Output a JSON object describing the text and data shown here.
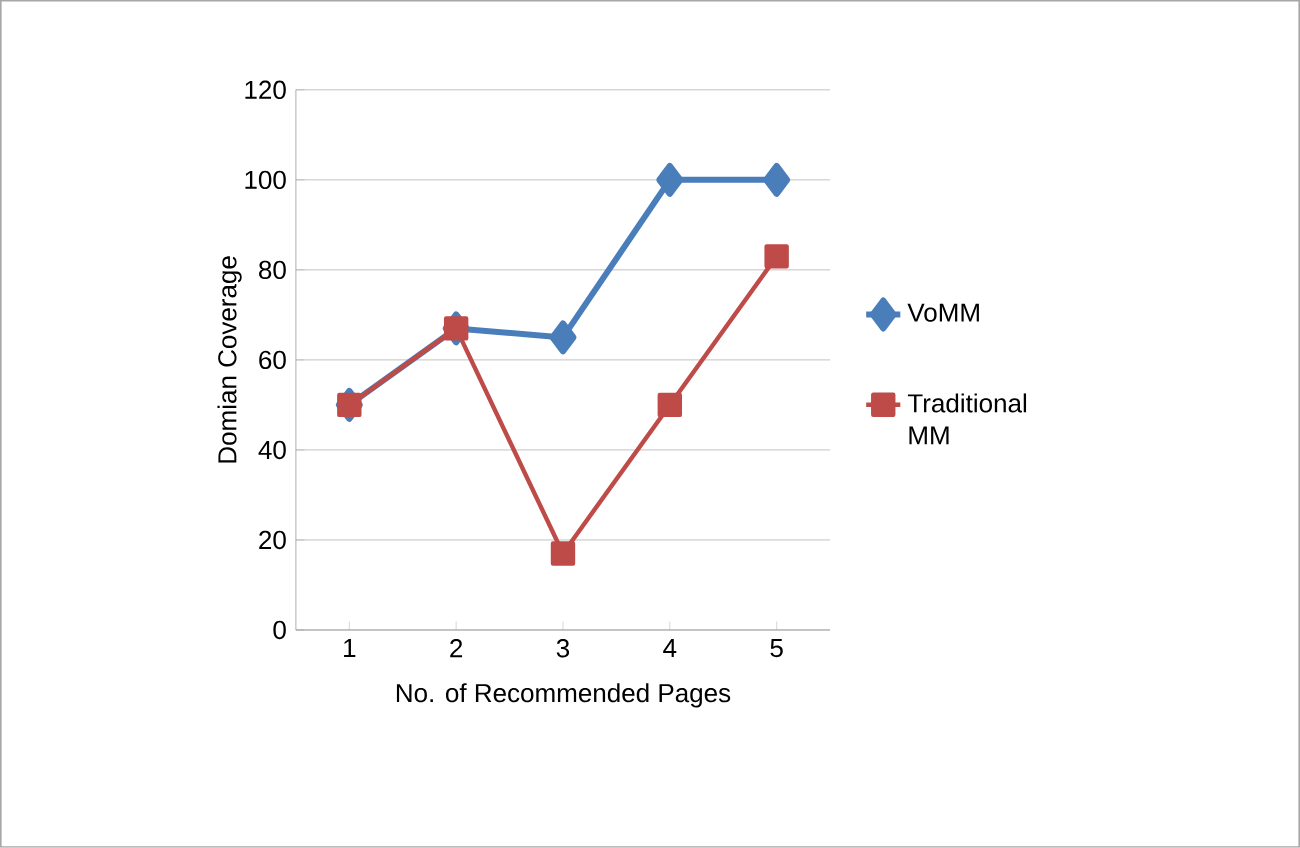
{
  "chart_data": {
    "type": "line",
    "xlabel": "No. of Recommended Pages",
    "ylabel": "Domian Coverage",
    "categories": [
      "1",
      "2",
      "3",
      "4",
      "5"
    ],
    "series": [
      {
        "name": "VoMM",
        "color": "#4a7ebb",
        "marker": "diamond",
        "values": [
          50,
          67,
          65,
          100,
          100
        ]
      },
      {
        "name": "Traditional MM",
        "color": "#be4b48",
        "marker": "square",
        "values": [
          50,
          67,
          17,
          50,
          83
        ]
      }
    ],
    "ylim": [
      0,
      120
    ],
    "yticks": [
      0,
      20,
      40,
      60,
      80,
      100,
      120
    ],
    "grid": "y",
    "legend": "right",
    "line_style": "solid"
  }
}
